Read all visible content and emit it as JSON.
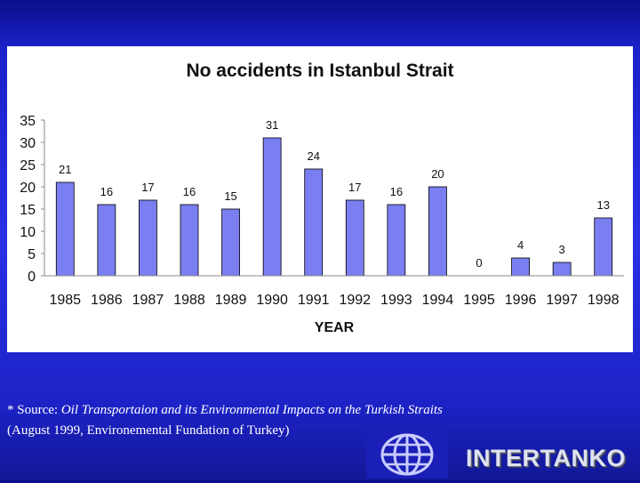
{
  "chart_data": {
    "type": "bar",
    "title": "No accidents in Istanbul Strait",
    "xlabel": "YEAR",
    "ylabel": "",
    "categories": [
      "1985",
      "1986",
      "1987",
      "1988",
      "1989",
      "1990",
      "1991",
      "1992",
      "1993",
      "1994",
      "1995",
      "1996",
      "1997",
      "1998"
    ],
    "values": [
      21,
      16,
      17,
      16,
      15,
      31,
      24,
      17,
      16,
      20,
      0,
      4,
      3,
      13
    ],
    "ylim": [
      0,
      35
    ],
    "yticks": [
      0,
      5,
      10,
      15,
      20,
      25,
      30,
      35
    ],
    "grid": false,
    "legend": "none",
    "data_labels": true,
    "bar_color": "#7a7ef0",
    "bar_edge_color": "#000000"
  },
  "source": {
    "prefix": "* Source: ",
    "title_italic": "Oil Transportaion and its Environmental Impacts on the Turkish Straits",
    "line2": " (August 1999, Environemental Fundation of Turkey)"
  },
  "logo": {
    "brand_text": "INTERTANKO",
    "globe_icon": "globe-icon"
  },
  "colors": {
    "background": "#1a22c9",
    "panel": "#ffffff",
    "bar": "#7a7ef0",
    "text_light": "#ffffff"
  }
}
